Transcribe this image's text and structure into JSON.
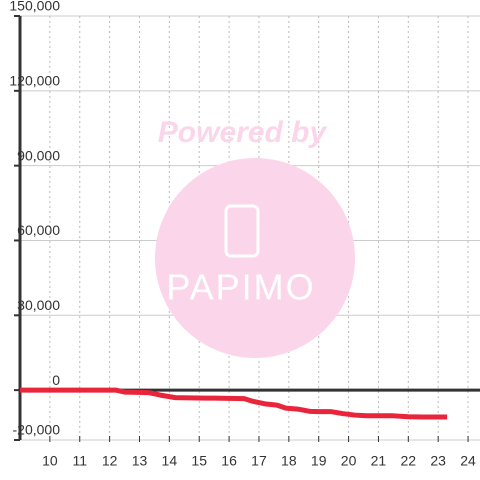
{
  "chart_data": {
    "type": "line",
    "annotations": [
      "Powered by",
      "PAPIMO"
    ],
    "xlim": [
      9,
      24.4
    ],
    "xticks": [
      10,
      11,
      12,
      13,
      14,
      15,
      16,
      17,
      18,
      19,
      20,
      21,
      22,
      23,
      24
    ],
    "ylim": [
      -20000,
      150000
    ],
    "yticks": [
      {
        "value": -20000,
        "label": "-20,000"
      },
      0,
      {
        "value": 30000,
        "label": "30,000"
      },
      {
        "value": 60000,
        "label": "60,000"
      },
      {
        "value": 90000,
        "label": "90,000"
      },
      {
        "value": 120000,
        "label": "120,000"
      },
      {
        "value": 150000,
        "label": "150,000"
      }
    ],
    "grid": true,
    "series": [
      {
        "color": "#e8253a",
        "x": [
          9,
          12.2,
          12.5,
          13.3,
          13.7,
          14.2,
          15.2,
          15.5,
          16.5,
          16.8,
          17.2,
          17.6,
          17.9,
          18.3,
          18.7,
          19,
          19.4,
          19.8,
          20.2,
          20.6,
          21,
          21.5,
          22,
          22.5,
          23.3
        ],
        "values": [
          0,
          0,
          -800,
          -1000,
          -2000,
          -3000,
          -3200,
          -3200,
          -3400,
          -4500,
          -5500,
          -6000,
          -7200,
          -7600,
          -8500,
          -8600,
          -8600,
          -9400,
          -10000,
          -10300,
          -10300,
          -10300,
          -10700,
          -10800,
          -10800
        ]
      }
    ]
  }
}
